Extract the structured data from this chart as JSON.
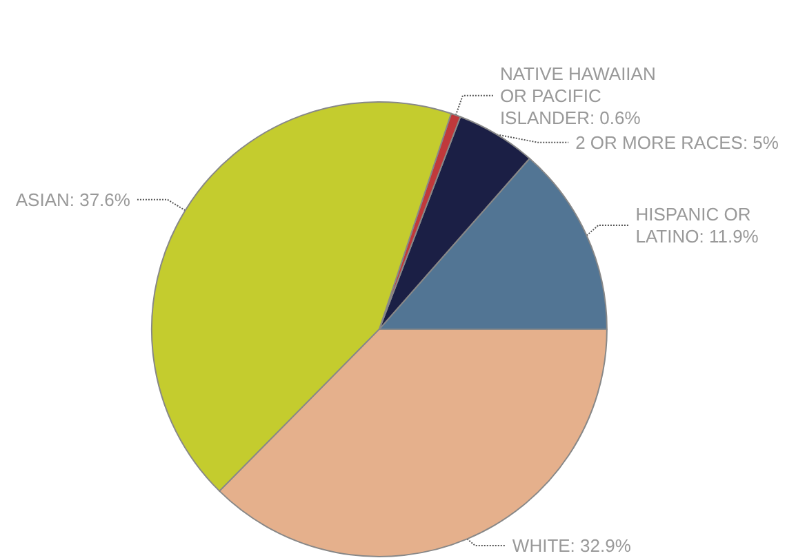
{
  "chart_data": {
    "type": "pie",
    "categories": [
      "HISPANIC OR LATINO",
      "2 OR MORE RACES",
      "NATIVE HAWAIIAN OR PACIFIC ISLANDER",
      "ASIAN",
      "WHITE"
    ],
    "values": [
      11.9,
      5,
      0.6,
      37.6,
      32.9
    ],
    "value_labels": [
      "11.9%",
      "5%",
      "0.6%",
      "37.6%",
      "32.9%"
    ],
    "colors": [
      "#527594",
      "#1b1f45",
      "#c0393b",
      "#c4cc2e",
      "#e5b08c"
    ],
    "legend": false
  }
}
